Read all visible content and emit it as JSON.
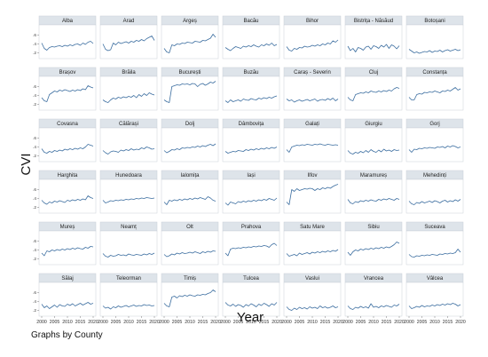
{
  "chart_data": {
    "type": "line",
    "layout": "small-multiples",
    "ylabel": "CVI",
    "xlabel": "Year",
    "note": "Graphs by County",
    "xlim": [
      2000,
      2020
    ],
    "ylim": [
      0.15,
      0.75
    ],
    "x_ticks": [
      "2000",
      "2005",
      "2010",
      "2015",
      "2020"
    ],
    "y_ticks": [
      {
        "value": 0.2,
        "label": ".2"
      },
      {
        "value": 0.4,
        "label": ".4"
      },
      {
        "value": 0.6,
        "label": ".6"
      }
    ],
    "x": [
      2000,
      2001,
      2002,
      2003,
      2004,
      2005,
      2006,
      2007,
      2008,
      2009,
      2010,
      2011,
      2012,
      2013,
      2014,
      2015,
      2016,
      2017,
      2018,
      2019,
      2020
    ],
    "series": [
      {
        "name": "Alba",
        "values": [
          0.42,
          0.3,
          0.26,
          0.32,
          0.34,
          0.33,
          0.35,
          0.36,
          0.34,
          0.37,
          0.35,
          0.38,
          0.36,
          0.39,
          0.4,
          0.37,
          0.42,
          0.39,
          0.44,
          0.46,
          0.41
        ]
      },
      {
        "name": "Arad",
        "values": [
          0.4,
          0.28,
          0.25,
          0.27,
          0.42,
          0.38,
          0.44,
          0.41,
          0.43,
          0.45,
          0.42,
          0.46,
          0.44,
          0.48,
          0.46,
          0.5,
          0.47,
          0.52,
          0.55,
          0.58,
          0.48
        ]
      },
      {
        "name": "Argeș",
        "values": [
          0.3,
          0.22,
          0.2,
          0.38,
          0.36,
          0.4,
          0.39,
          0.42,
          0.41,
          0.44,
          0.43,
          0.42,
          0.46,
          0.45,
          0.44,
          0.48,
          0.47,
          0.5,
          0.53,
          0.62,
          0.55
        ]
      },
      {
        "name": "Bacău",
        "values": [
          0.32,
          0.28,
          0.25,
          0.3,
          0.34,
          0.32,
          0.3,
          0.35,
          0.33,
          0.36,
          0.34,
          0.38,
          0.35,
          0.33,
          0.38,
          0.36,
          0.4,
          0.37,
          0.42,
          0.36,
          0.39
        ]
      },
      {
        "name": "Bihor",
        "values": [
          0.34,
          0.26,
          0.24,
          0.3,
          0.28,
          0.32,
          0.31,
          0.35,
          0.33,
          0.34,
          0.37,
          0.35,
          0.38,
          0.36,
          0.4,
          0.38,
          0.42,
          0.4,
          0.47,
          0.44,
          0.49
        ]
      },
      {
        "name": "Bistrița - Năsăud",
        "values": [
          0.35,
          0.25,
          0.3,
          0.22,
          0.32,
          0.3,
          0.26,
          0.33,
          0.35,
          0.28,
          0.36,
          0.34,
          0.3,
          0.37,
          0.33,
          0.39,
          0.3,
          0.38,
          0.35,
          0.29,
          0.36
        ]
      },
      {
        "name": "Botoșani",
        "values": [
          0.28,
          0.24,
          0.2,
          0.22,
          0.19,
          0.21,
          0.23,
          0.22,
          0.25,
          0.21,
          0.24,
          0.23,
          0.26,
          0.22,
          0.25,
          0.27,
          0.24,
          0.26,
          0.28,
          0.25,
          0.27
        ]
      },
      {
        "name": "Brașov",
        "values": [
          0.35,
          0.28,
          0.26,
          0.42,
          0.46,
          0.5,
          0.48,
          0.52,
          0.5,
          0.53,
          0.51,
          0.49,
          0.52,
          0.5,
          0.53,
          0.51,
          0.55,
          0.53,
          0.62,
          0.59,
          0.57
        ]
      },
      {
        "name": "Brăila",
        "values": [
          0.3,
          0.26,
          0.24,
          0.3,
          0.34,
          0.32,
          0.36,
          0.34,
          0.37,
          0.35,
          0.38,
          0.36,
          0.4,
          0.35,
          0.42,
          0.38,
          0.44,
          0.4,
          0.46,
          0.43,
          0.41
        ]
      },
      {
        "name": "București",
        "values": [
          0.3,
          0.26,
          0.24,
          0.6,
          0.62,
          0.64,
          0.63,
          0.66,
          0.65,
          0.66,
          0.64,
          0.67,
          0.66,
          0.6,
          0.65,
          0.67,
          0.63,
          0.66,
          0.7,
          0.68,
          0.72
        ]
      },
      {
        "name": "Buzău",
        "values": [
          0.28,
          0.24,
          0.3,
          0.26,
          0.28,
          0.3,
          0.27,
          0.32,
          0.3,
          0.29,
          0.33,
          0.31,
          0.3,
          0.34,
          0.32,
          0.35,
          0.33,
          0.36,
          0.34,
          0.37,
          0.39
        ]
      },
      {
        "name": "Caraș - Severin",
        "values": [
          0.32,
          0.28,
          0.3,
          0.25,
          0.28,
          0.3,
          0.27,
          0.29,
          0.31,
          0.28,
          0.3,
          0.32,
          0.27,
          0.3,
          0.31,
          0.29,
          0.33,
          0.3,
          0.34,
          0.28,
          0.32
        ]
      },
      {
        "name": "Cluj",
        "values": [
          0.36,
          0.3,
          0.28,
          0.42,
          0.44,
          0.46,
          0.45,
          0.48,
          0.46,
          0.5,
          0.48,
          0.47,
          0.5,
          0.48,
          0.51,
          0.49,
          0.52,
          0.5,
          0.55,
          0.58,
          0.56
        ]
      },
      {
        "name": "Constanța",
        "values": [
          0.36,
          0.3,
          0.3,
          0.42,
          0.44,
          0.43,
          0.47,
          0.46,
          0.48,
          0.47,
          0.5,
          0.48,
          0.46,
          0.5,
          0.49,
          0.52,
          0.5,
          0.54,
          0.58,
          0.52,
          0.55
        ]
      },
      {
        "name": "Covasna",
        "values": [
          0.36,
          0.28,
          0.26,
          0.3,
          0.28,
          0.32,
          0.3,
          0.33,
          0.31,
          0.35,
          0.33,
          0.36,
          0.34,
          0.37,
          0.35,
          0.38,
          0.36,
          0.4,
          0.46,
          0.44,
          0.42
        ]
      },
      {
        "name": "Călărași",
        "values": [
          0.32,
          0.27,
          0.24,
          0.29,
          0.31,
          0.3,
          0.28,
          0.33,
          0.31,
          0.34,
          0.32,
          0.36,
          0.33,
          0.35,
          0.34,
          0.38,
          0.36,
          0.4,
          0.38,
          0.35,
          0.36
        ]
      },
      {
        "name": "Dolj",
        "values": [
          0.32,
          0.27,
          0.3,
          0.34,
          0.33,
          0.36,
          0.34,
          0.38,
          0.37,
          0.39,
          0.38,
          0.4,
          0.39,
          0.42,
          0.4,
          0.43,
          0.41,
          0.44,
          0.46,
          0.43,
          0.47
        ]
      },
      {
        "name": "Dâmbovița",
        "values": [
          0.3,
          0.26,
          0.28,
          0.3,
          0.29,
          0.32,
          0.31,
          0.3,
          0.34,
          0.32,
          0.35,
          0.33,
          0.36,
          0.34,
          0.37,
          0.35,
          0.38,
          0.36,
          0.39,
          0.37,
          0.4
        ]
      },
      {
        "name": "Galați",
        "values": [
          0.34,
          0.28,
          0.4,
          0.42,
          0.44,
          0.43,
          0.45,
          0.44,
          0.46,
          0.45,
          0.44,
          0.46,
          0.45,
          0.47,
          0.45,
          0.44,
          0.46,
          0.45,
          0.44,
          0.45,
          0.44
        ]
      },
      {
        "name": "Giurgiu",
        "values": [
          0.32,
          0.26,
          0.24,
          0.28,
          0.26,
          0.3,
          0.27,
          0.32,
          0.28,
          0.34,
          0.3,
          0.28,
          0.33,
          0.29,
          0.35,
          0.31,
          0.33,
          0.3,
          0.34,
          0.32,
          0.33
        ]
      },
      {
        "name": "Gorj",
        "values": [
          0.34,
          0.28,
          0.35,
          0.34,
          0.37,
          0.36,
          0.38,
          0.37,
          0.39,
          0.38,
          0.37,
          0.4,
          0.39,
          0.41,
          0.38,
          0.42,
          0.4,
          0.43,
          0.41,
          0.38,
          0.4
        ]
      },
      {
        "name": "Harghita",
        "values": [
          0.36,
          0.3,
          0.27,
          0.32,
          0.3,
          0.34,
          0.32,
          0.35,
          0.33,
          0.31,
          0.36,
          0.34,
          0.37,
          0.35,
          0.38,
          0.36,
          0.39,
          0.37,
          0.46,
          0.42,
          0.4
        ]
      },
      {
        "name": "Hunedoara",
        "values": [
          0.36,
          0.3,
          0.32,
          0.35,
          0.34,
          0.36,
          0.35,
          0.37,
          0.36,
          0.38,
          0.37,
          0.39,
          0.38,
          0.4,
          0.39,
          0.41,
          0.4,
          0.42,
          0.41,
          0.4,
          0.41
        ]
      },
      {
        "name": "Ialomița",
        "values": [
          0.32,
          0.26,
          0.36,
          0.34,
          0.37,
          0.35,
          0.38,
          0.36,
          0.39,
          0.37,
          0.4,
          0.38,
          0.41,
          0.39,
          0.42,
          0.4,
          0.38,
          0.44,
          0.41,
          0.36,
          0.34
        ]
      },
      {
        "name": "Iași",
        "values": [
          0.3,
          0.25,
          0.32,
          0.3,
          0.28,
          0.33,
          0.31,
          0.34,
          0.32,
          0.35,
          0.33,
          0.36,
          0.34,
          0.37,
          0.35,
          0.38,
          0.36,
          0.4,
          0.38,
          0.36,
          0.41
        ]
      },
      {
        "name": "Ilfov",
        "values": [
          0.32,
          0.26,
          0.6,
          0.56,
          0.62,
          0.58,
          0.6,
          0.62,
          0.61,
          0.63,
          0.62,
          0.58,
          0.62,
          0.6,
          0.64,
          0.62,
          0.65,
          0.63,
          0.67,
          0.7,
          0.72
        ]
      },
      {
        "name": "Maramureș",
        "values": [
          0.38,
          0.3,
          0.28,
          0.33,
          0.31,
          0.35,
          0.33,
          0.36,
          0.34,
          0.37,
          0.35,
          0.34,
          0.38,
          0.36,
          0.39,
          0.37,
          0.4,
          0.38,
          0.36,
          0.4,
          0.38
        ]
      },
      {
        "name": "Mehedinți",
        "values": [
          0.34,
          0.28,
          0.26,
          0.31,
          0.29,
          0.33,
          0.3,
          0.32,
          0.34,
          0.31,
          0.35,
          0.33,
          0.3,
          0.34,
          0.36,
          0.32,
          0.35,
          0.33,
          0.37,
          0.34,
          0.38
        ]
      },
      {
        "name": "Mureș",
        "values": [
          0.33,
          0.27,
          0.38,
          0.36,
          0.4,
          0.38,
          0.41,
          0.39,
          0.42,
          0.4,
          0.43,
          0.41,
          0.44,
          0.42,
          0.45,
          0.43,
          0.42,
          0.46,
          0.44,
          0.48,
          0.47
        ]
      },
      {
        "name": "Neamț",
        "values": [
          0.32,
          0.26,
          0.24,
          0.28,
          0.26,
          0.27,
          0.3,
          0.28,
          0.29,
          0.27,
          0.31,
          0.29,
          0.28,
          0.3,
          0.29,
          0.28,
          0.31,
          0.29,
          0.32,
          0.3,
          0.33
        ]
      },
      {
        "name": "Olt",
        "values": [
          0.3,
          0.25,
          0.27,
          0.31,
          0.29,
          0.33,
          0.31,
          0.34,
          0.32,
          0.33,
          0.35,
          0.33,
          0.36,
          0.34,
          0.32,
          0.36,
          0.34,
          0.37,
          0.35,
          0.38,
          0.37
        ]
      },
      {
        "name": "Prahova",
        "values": [
          0.33,
          0.27,
          0.42,
          0.44,
          0.43,
          0.45,
          0.44,
          0.46,
          0.45,
          0.47,
          0.46,
          0.48,
          0.47,
          0.49,
          0.48,
          0.5,
          0.49,
          0.46,
          0.52,
          0.55,
          0.5
        ]
      },
      {
        "name": "Satu Mare",
        "values": [
          0.32,
          0.26,
          0.28,
          0.3,
          0.27,
          0.33,
          0.3,
          0.32,
          0.34,
          0.31,
          0.35,
          0.33,
          0.36,
          0.34,
          0.37,
          0.35,
          0.38,
          0.36,
          0.39,
          0.37,
          0.41
        ]
      },
      {
        "name": "Sibiu",
        "values": [
          0.35,
          0.28,
          0.36,
          0.4,
          0.38,
          0.42,
          0.4,
          0.43,
          0.41,
          0.44,
          0.42,
          0.45,
          0.43,
          0.46,
          0.44,
          0.47,
          0.45,
          0.48,
          0.52,
          0.58,
          0.55
        ]
      },
      {
        "name": "Suceava",
        "values": [
          0.3,
          0.25,
          0.24,
          0.27,
          0.26,
          0.28,
          0.27,
          0.29,
          0.28,
          0.3,
          0.29,
          0.28,
          0.31,
          0.3,
          0.32,
          0.31,
          0.33,
          0.32,
          0.34,
          0.42,
          0.35
        ]
      },
      {
        "name": "Sălaj",
        "values": [
          0.34,
          0.26,
          0.3,
          0.24,
          0.28,
          0.32,
          0.27,
          0.33,
          0.3,
          0.29,
          0.34,
          0.31,
          0.35,
          0.3,
          0.33,
          0.36,
          0.32,
          0.35,
          0.38,
          0.34,
          0.36
        ]
      },
      {
        "name": "Teleorman",
        "values": [
          0.3,
          0.25,
          0.27,
          0.23,
          0.28,
          0.26,
          0.3,
          0.27,
          0.29,
          0.31,
          0.28,
          0.3,
          0.32,
          0.29,
          0.31,
          0.3,
          0.33,
          0.31,
          0.32,
          0.3,
          0.31
        ]
      },
      {
        "name": "Timiș",
        "values": [
          0.36,
          0.3,
          0.28,
          0.5,
          0.52,
          0.48,
          0.53,
          0.51,
          0.54,
          0.52,
          0.55,
          0.53,
          0.52,
          0.55,
          0.54,
          0.56,
          0.55,
          0.58,
          0.6,
          0.66,
          0.62
        ]
      },
      {
        "name": "Tulcea",
        "values": [
          0.38,
          0.32,
          0.3,
          0.34,
          0.29,
          0.33,
          0.31,
          0.27,
          0.33,
          0.3,
          0.35,
          0.32,
          0.28,
          0.34,
          0.31,
          0.36,
          0.33,
          0.29,
          0.35,
          0.32,
          0.38
        ]
      },
      {
        "name": "Vaslui",
        "values": [
          0.28,
          0.22,
          0.2,
          0.25,
          0.22,
          0.27,
          0.24,
          0.26,
          0.23,
          0.28,
          0.25,
          0.27,
          0.24,
          0.3,
          0.26,
          0.28,
          0.25,
          0.27,
          0.3,
          0.26,
          0.28
        ]
      },
      {
        "name": "Vrancea",
        "values": [
          0.3,
          0.24,
          0.22,
          0.27,
          0.25,
          0.29,
          0.26,
          0.28,
          0.25,
          0.35,
          0.27,
          0.29,
          0.26,
          0.3,
          0.28,
          0.31,
          0.29,
          0.27,
          0.32,
          0.3,
          0.34
        ]
      },
      {
        "name": "Vâlcea",
        "values": [
          0.3,
          0.24,
          0.26,
          0.29,
          0.27,
          0.31,
          0.28,
          0.3,
          0.29,
          0.32,
          0.3,
          0.33,
          0.31,
          0.34,
          0.32,
          0.35,
          0.33,
          0.36,
          0.34,
          0.3,
          0.33
        ]
      }
    ]
  }
}
